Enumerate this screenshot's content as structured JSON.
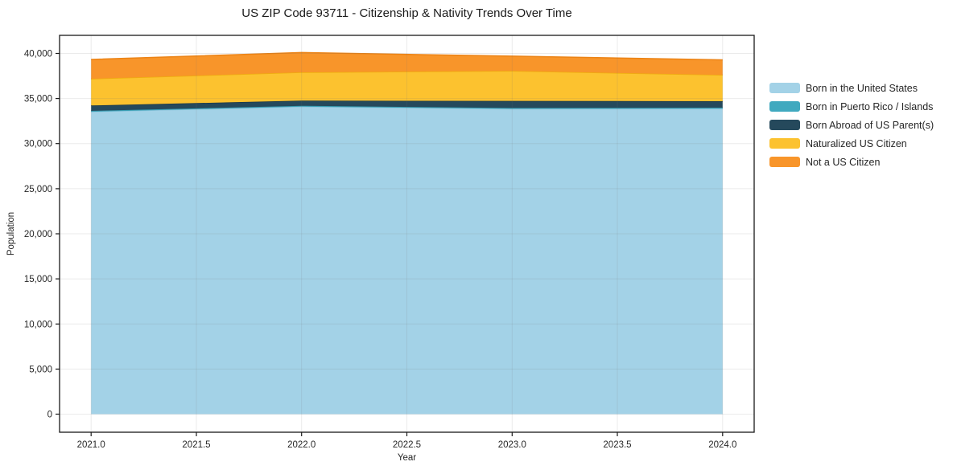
{
  "figure": {
    "title": "US ZIP Code 93711 - Citizenship & Nativity Trends Over Time",
    "xlabel": "Year",
    "ylabel": "Population"
  },
  "chart_data": {
    "type": "area",
    "stacked": true,
    "title": "US ZIP Code 93711 - Citizenship & Nativity Trends Over Time",
    "xlabel": "Year",
    "ylabel": "Population",
    "x": [
      2021,
      2022,
      2023,
      2024
    ],
    "series": [
      {
        "name": "Born in the United States",
        "color": "#a3d2e7",
        "edge": "#8ec4dc",
        "values": [
          33530,
          34090,
          33850,
          33880
        ]
      },
      {
        "name": "Born in Puerto Rico / Islands",
        "color": "#40a9bf",
        "edge": "#379aae",
        "values": [
          100,
          100,
          100,
          100
        ]
      },
      {
        "name": "Born Abroad of US Parent(s)",
        "color": "#25495c",
        "edge": "#1c3949",
        "values": [
          590,
          570,
          780,
          720
        ]
      },
      {
        "name": "Naturalized US Citizen",
        "color": "#fcc22f",
        "edge": "#eead0e",
        "values": [
          2960,
          3140,
          3320,
          2910
        ]
      },
      {
        "name": "Not a US Citizen",
        "color": "#f8952a",
        "edge": "#ec8315",
        "values": [
          2150,
          2190,
          1640,
          1670
        ]
      }
    ],
    "totals": [
      39330,
      40090,
      39690,
      39280
    ],
    "xticks": [
      2021.0,
      2021.5,
      2022.0,
      2022.5,
      2023.0,
      2023.5,
      2024.0
    ],
    "xtick_labels": [
      "2021.0",
      "2021.5",
      "2022.0",
      "2022.5",
      "2023.0",
      "2023.5",
      "2024.0"
    ],
    "yticks": [
      0,
      5000,
      10000,
      15000,
      20000,
      25000,
      30000,
      35000,
      40000
    ],
    "ytick_labels": [
      "0",
      "5,000",
      "10,000",
      "15,000",
      "20,000",
      "25,000",
      "30,000",
      "35,000",
      "40,000"
    ],
    "xlim": [
      2020.85,
      2024.15
    ],
    "ylim": [
      -2000,
      42000
    ],
    "grid": true,
    "legend_position": "outside-right"
  },
  "style": {
    "spine_color": "#1a1a1a",
    "tick_label_color": "#262626",
    "grid_rgba": "rgba(110,110,110,0.14)"
  }
}
